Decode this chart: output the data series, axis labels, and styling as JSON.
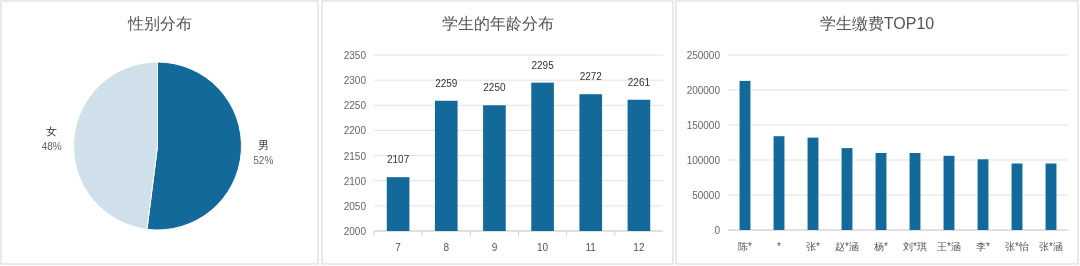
{
  "chart_data": [
    {
      "type": "pie",
      "title": "性别分布",
      "categories": [
        "男",
        "女"
      ],
      "values": [
        52,
        48
      ],
      "colors": [
        "#136a9a",
        "#d0e0eb"
      ],
      "value_labels": [
        "52%",
        "48%"
      ]
    },
    {
      "type": "bar",
      "title": "学生的年龄分布",
      "categories": [
        "7",
        "8",
        "9",
        "10",
        "11",
        "12"
      ],
      "series": [
        {
          "color": "#136a9a",
          "values": [
            2107,
            2259,
            2250,
            2295,
            2272,
            2261
          ]
        }
      ],
      "ylim": [
        2000,
        2350
      ],
      "yticks": [
        2000,
        2050,
        2100,
        2150,
        2200,
        2250,
        2300,
        2350
      ],
      "grid": "y",
      "data_labels": true
    },
    {
      "type": "bar",
      "title": "学生缴费TOP10",
      "categories": [
        "陈*",
        "*",
        "张*",
        "赵*涵",
        "杨*",
        "刘*琪",
        "王*涵",
        "李*",
        "张*怡",
        "张*涵"
      ],
      "series": [
        {
          "color": "#136a9a",
          "values": [
            213000,
            134000,
            132000,
            117000,
            110000,
            110000,
            106000,
            101000,
            95000,
            95000
          ]
        }
      ],
      "ylim": [
        0,
        250000
      ],
      "yticks": [
        0,
        50000,
        100000,
        150000,
        200000,
        250000
      ],
      "grid": "y"
    }
  ]
}
